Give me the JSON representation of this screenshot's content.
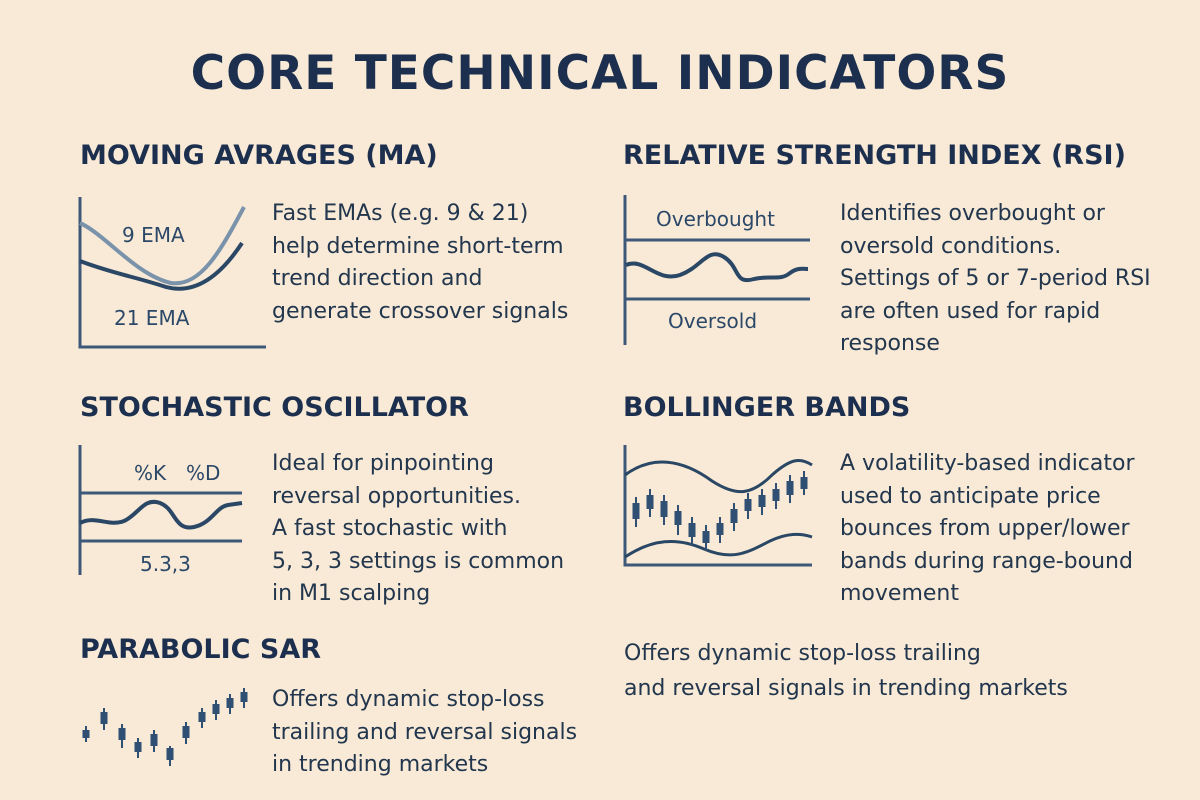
{
  "title": "CORE TECHNICAL INDICATORS",
  "colors": {
    "background": "#f8ead6",
    "navy": "#1c2f4e",
    "line_dark": "#2b4766",
    "line_light": "#7a93ab",
    "axis": "#3d5878"
  },
  "sections": {
    "ma": {
      "title": "MOVING AVRAGES (MA)",
      "labels": {
        "fast": "9 EMA",
        "slow": "21 EMA"
      },
      "lines": [
        "Fast EMAs (e.g. 9 & 21)",
        "help determine short-term",
        "trend direction and",
        "generate crossover signals"
      ]
    },
    "rsi": {
      "title": "RELATIVE STRENGTH INDEX (RSI)",
      "labels": {
        "top": "Overbought",
        "bottom": "Oversold"
      },
      "lines": [
        "Identifies overbought or",
        "oversold conditions.",
        "Settings of 5 or 7-period RSI",
        "are often used for rapid",
        "response"
      ]
    },
    "stoch": {
      "title": "STOCHASTIC OSCILLATOR",
      "labels": {
        "k": "%K",
        "d": "%D",
        "setting": "5.3,3"
      },
      "lines": [
        "Ideal for pinpointing",
        "reversal opportunities.",
        "A fast stochastic with",
        "5, 3, 3 settings is common",
        "in M1 scalping"
      ]
    },
    "bb": {
      "title": "BOLLINGER BANDS",
      "lines": [
        "A volatility-based indicator",
        "used to anticipate price",
        "bounces from upper/lower",
        "bands during range-bound",
        "movement"
      ]
    },
    "sar": {
      "title": "PARABOLIC SAR",
      "lines": [
        "Offers dynamic stop-loss",
        "trailing and reversal signals",
        "in trending markets"
      ]
    },
    "extra": {
      "lines": [
        "Offers dynamic stop-loss trailing",
        "and reversal signals in trending markets"
      ]
    }
  }
}
